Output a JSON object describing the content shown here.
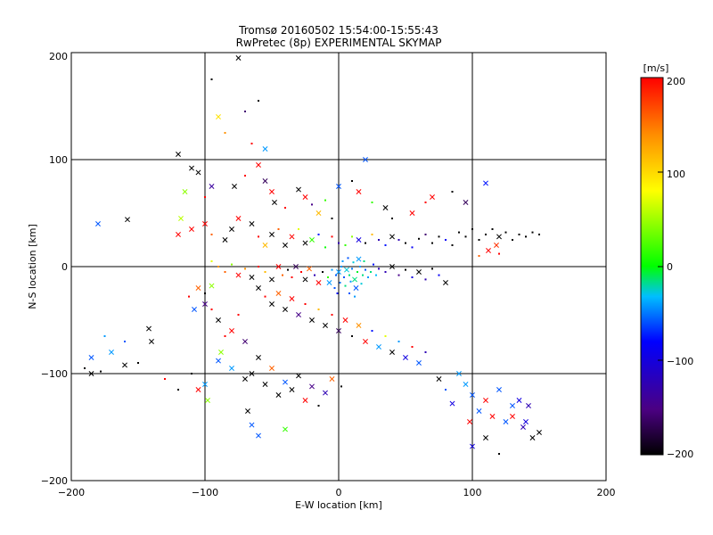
{
  "chart_data": {
    "type": "scatter",
    "title": "Tromsø 20160502 15:54:00-15:55:43",
    "subtitle": "RwPretec (8p) EXPERIMENTAL SKYMAP",
    "xlabel": "E-W location [km]",
    "ylabel": "N-S location [km]",
    "xlim": [
      -200,
      200
    ],
    "ylim": [
      -200,
      200
    ],
    "xticks": [
      "−200",
      "−100",
      "0",
      "100",
      "200"
    ],
    "yticks": [
      "−200",
      "−100",
      "0",
      "100",
      "200"
    ],
    "grid": true,
    "colorbar": {
      "label": "[m/s]",
      "range": [
        -200,
        200
      ],
      "ticks": [
        "200",
        "100",
        "0",
        "−100",
        "−200"
      ],
      "colors": [
        "#000000",
        "#4b0082",
        "#0000ff",
        "#00bfff",
        "#00ff00",
        "#ffff00",
        "#ff8c00",
        "#ff0000"
      ]
    },
    "points": [
      [
        -75,
        195,
        -200,
        "x"
      ],
      [
        -95,
        175,
        -200,
        "."
      ],
      [
        -60,
        155,
        -200,
        "."
      ],
      [
        -70,
        145,
        -150,
        "."
      ],
      [
        -90,
        140,
        100,
        "x"
      ],
      [
        -85,
        125,
        140,
        "."
      ],
      [
        -65,
        115,
        200,
        "."
      ],
      [
        -55,
        110,
        -40,
        "x"
      ],
      [
        -120,
        105,
        -200,
        "x"
      ],
      [
        -110,
        92,
        -200,
        "x"
      ],
      [
        -105,
        88,
        -200,
        "x"
      ],
      [
        -95,
        75,
        -130,
        "x"
      ],
      [
        -115,
        70,
        60,
        "x"
      ],
      [
        -100,
        65,
        200,
        "."
      ],
      [
        -78,
        75,
        -200,
        "x"
      ],
      [
        -70,
        85,
        200,
        "."
      ],
      [
        -60,
        95,
        200,
        "x"
      ],
      [
        -55,
        80,
        -160,
        "x"
      ],
      [
        -50,
        70,
        200,
        "x"
      ],
      [
        -48,
        60,
        -200,
        "x"
      ],
      [
        -40,
        55,
        200,
        "."
      ],
      [
        -30,
        72,
        -200,
        "x"
      ],
      [
        -25,
        65,
        200,
        "x"
      ],
      [
        -20,
        58,
        -140,
        "."
      ],
      [
        -15,
        50,
        120,
        "x"
      ],
      [
        -10,
        62,
        40,
        "."
      ],
      [
        -5,
        45,
        -200,
        "."
      ],
      [
        0,
        75,
        -60,
        "x"
      ],
      [
        10,
        80,
        -200,
        "."
      ],
      [
        20,
        100,
        -60,
        "x"
      ],
      [
        15,
        70,
        200,
        "x"
      ],
      [
        25,
        60,
        40,
        "."
      ],
      [
        35,
        55,
        -200,
        "x"
      ],
      [
        40,
        45,
        -200,
        "."
      ],
      [
        55,
        50,
        200,
        "x"
      ],
      [
        65,
        60,
        200,
        "."
      ],
      [
        70,
        65,
        200,
        "x"
      ],
      [
        85,
        70,
        -200,
        "."
      ],
      [
        110,
        78,
        -80,
        "x"
      ],
      [
        95,
        60,
        -160,
        "x"
      ],
      [
        -180,
        40,
        -60,
        "x"
      ],
      [
        -158,
        44,
        -200,
        "x"
      ],
      [
        -118,
        45,
        70,
        "x"
      ],
      [
        -120,
        30,
        200,
        "x"
      ],
      [
        -110,
        35,
        200,
        "x"
      ],
      [
        -100,
        40,
        200,
        "x"
      ],
      [
        -95,
        30,
        160,
        "."
      ],
      [
        -85,
        25,
        -200,
        "x"
      ],
      [
        -80,
        35,
        -200,
        "x"
      ],
      [
        -75,
        45,
        200,
        "x"
      ],
      [
        -65,
        40,
        -200,
        "x"
      ],
      [
        -60,
        28,
        200,
        "."
      ],
      [
        -55,
        20,
        120,
        "x"
      ],
      [
        -50,
        30,
        -200,
        "x"
      ],
      [
        -45,
        35,
        160,
        "."
      ],
      [
        -40,
        20,
        -200,
        "x"
      ],
      [
        -35,
        28,
        200,
        "x"
      ],
      [
        -30,
        35,
        80,
        "."
      ],
      [
        -25,
        22,
        -200,
        "x"
      ],
      [
        -20,
        25,
        40,
        "x"
      ],
      [
        -15,
        30,
        -80,
        "."
      ],
      [
        -10,
        18,
        30,
        "."
      ],
      [
        -5,
        28,
        200,
        "."
      ],
      [
        0,
        22,
        -120,
        "."
      ],
      [
        5,
        20,
        40,
        "."
      ],
      [
        10,
        28,
        60,
        "."
      ],
      [
        15,
        25,
        -100,
        "x"
      ],
      [
        20,
        22,
        -200,
        "."
      ],
      [
        25,
        30,
        120,
        "."
      ],
      [
        30,
        25,
        -120,
        "."
      ],
      [
        35,
        20,
        -80,
        "."
      ],
      [
        40,
        28,
        -200,
        "x"
      ],
      [
        45,
        25,
        -120,
        "."
      ],
      [
        50,
        22,
        -200,
        "."
      ],
      [
        55,
        18,
        -90,
        "."
      ],
      [
        60,
        26,
        -200,
        "."
      ],
      [
        65,
        30,
        -150,
        "."
      ],
      [
        70,
        22,
        -200,
        "."
      ],
      [
        75,
        28,
        -200,
        "."
      ],
      [
        80,
        25,
        -90,
        "."
      ],
      [
        85,
        20,
        -200,
        "."
      ],
      [
        90,
        32,
        -200,
        "."
      ],
      [
        95,
        28,
        -200,
        "."
      ],
      [
        100,
        35,
        -200,
        "."
      ],
      [
        105,
        25,
        -200,
        "."
      ],
      [
        110,
        30,
        -200,
        "."
      ],
      [
        115,
        35,
        -200,
        "."
      ],
      [
        120,
        28,
        -200,
        "x"
      ],
      [
        125,
        32,
        -200,
        "."
      ],
      [
        130,
        25,
        -200,
        "."
      ],
      [
        135,
        30,
        -200,
        "."
      ],
      [
        140,
        28,
        -200,
        "."
      ],
      [
        145,
        32,
        -200,
        "."
      ],
      [
        150,
        30,
        -200,
        "."
      ],
      [
        118,
        20,
        180,
        "x"
      ],
      [
        112,
        15,
        200,
        "x"
      ],
      [
        105,
        10,
        160,
        "."
      ],
      [
        120,
        12,
        200,
        "."
      ],
      [
        -95,
        5,
        80,
        "."
      ],
      [
        -90,
        0,
        140,
        "."
      ],
      [
        -85,
        -5,
        160,
        "."
      ],
      [
        -80,
        2,
        60,
        "."
      ],
      [
        -75,
        -8,
        200,
        "x"
      ],
      [
        -70,
        -2,
        140,
        "."
      ],
      [
        -65,
        -10,
        -200,
        "x"
      ],
      [
        -60,
        0,
        200,
        "."
      ],
      [
        -55,
        -5,
        120,
        "."
      ],
      [
        -50,
        -12,
        -200,
        "x"
      ],
      [
        -45,
        0,
        200,
        "x"
      ],
      [
        -42,
        -8,
        160,
        "."
      ],
      [
        -38,
        -3,
        -200,
        "."
      ],
      [
        -35,
        -10,
        200,
        "."
      ],
      [
        -32,
        0,
        -160,
        "x"
      ],
      [
        -28,
        -5,
        200,
        "."
      ],
      [
        -25,
        -12,
        -200,
        "x"
      ],
      [
        -22,
        -2,
        160,
        "x"
      ],
      [
        -18,
        -8,
        -120,
        "."
      ],
      [
        -15,
        -15,
        200,
        "x"
      ],
      [
        -12,
        -5,
        -200,
        "."
      ],
      [
        -8,
        -10,
        40,
        "."
      ],
      [
        -5,
        -3,
        -40,
        "."
      ],
      [
        -2,
        -8,
        -60,
        "."
      ],
      [
        0,
        -5,
        -40,
        "x"
      ],
      [
        2,
        0,
        -40,
        "."
      ],
      [
        4,
        -10,
        -60,
        "."
      ],
      [
        6,
        -3,
        -20,
        "x"
      ],
      [
        8,
        -8,
        0,
        "."
      ],
      [
        10,
        -2,
        -50,
        "."
      ],
      [
        12,
        -12,
        0,
        "x"
      ],
      [
        14,
        -5,
        20,
        "."
      ],
      [
        16,
        0,
        -40,
        "."
      ],
      [
        18,
        -8,
        0,
        "."
      ],
      [
        20,
        -3,
        -60,
        "."
      ],
      [
        22,
        -10,
        -40,
        "."
      ],
      [
        24,
        -5,
        0,
        "."
      ],
      [
        26,
        2,
        -80,
        "."
      ],
      [
        28,
        -8,
        -30,
        "."
      ],
      [
        30,
        -2,
        -120,
        "."
      ],
      [
        3,
        5,
        -40,
        "."
      ],
      [
        7,
        8,
        -60,
        "."
      ],
      [
        11,
        4,
        -20,
        "."
      ],
      [
        15,
        7,
        -40,
        "x"
      ],
      [
        19,
        5,
        0,
        "."
      ],
      [
        1,
        -15,
        -50,
        "."
      ],
      [
        5,
        -18,
        0,
        "."
      ],
      [
        9,
        -14,
        -40,
        "."
      ],
      [
        13,
        -20,
        -60,
        "x"
      ],
      [
        17,
        -16,
        -20,
        "."
      ],
      [
        -3,
        -20,
        -60,
        "."
      ],
      [
        -7,
        -15,
        -40,
        "x"
      ],
      [
        -1,
        -25,
        -80,
        "."
      ],
      [
        8,
        -25,
        -60,
        "."
      ],
      [
        12,
        -28,
        -40,
        "."
      ],
      [
        35,
        -5,
        -120,
        "."
      ],
      [
        40,
        0,
        -200,
        "x"
      ],
      [
        45,
        -8,
        -140,
        "."
      ],
      [
        50,
        -3,
        -200,
        "."
      ],
      [
        55,
        -10,
        -100,
        "."
      ],
      [
        60,
        -5,
        -200,
        "x"
      ],
      [
        65,
        -12,
        -120,
        "."
      ],
      [
        70,
        -2,
        -200,
        "."
      ],
      [
        75,
        -8,
        -90,
        "."
      ],
      [
        80,
        -15,
        -200,
        "x"
      ],
      [
        -60,
        -20,
        -200,
        "x"
      ],
      [
        -55,
        -28,
        200,
        "."
      ],
      [
        -50,
        -35,
        -200,
        "x"
      ],
      [
        -45,
        -25,
        160,
        "x"
      ],
      [
        -40,
        -40,
        -200,
        "x"
      ],
      [
        -35,
        -30,
        200,
        "x"
      ],
      [
        -30,
        -45,
        -140,
        "x"
      ],
      [
        -25,
        -35,
        200,
        "."
      ],
      [
        -20,
        -50,
        -200,
        "x"
      ],
      [
        -15,
        -40,
        120,
        "."
      ],
      [
        -10,
        -55,
        -200,
        "x"
      ],
      [
        -5,
        -45,
        200,
        "."
      ],
      [
        0,
        -60,
        -160,
        "x"
      ],
      [
        5,
        -50,
        200,
        "x"
      ],
      [
        10,
        -65,
        -200,
        "."
      ],
      [
        15,
        -55,
        140,
        "x"
      ],
      [
        20,
        -70,
        200,
        "x"
      ],
      [
        25,
        -60,
        -80,
        "."
      ],
      [
        30,
        -75,
        -40,
        "x"
      ],
      [
        35,
        -65,
        80,
        "."
      ],
      [
        40,
        -80,
        -200,
        "x"
      ],
      [
        45,
        -70,
        -40,
        "."
      ],
      [
        50,
        -85,
        -100,
        "x"
      ],
      [
        55,
        -75,
        200,
        "."
      ],
      [
        60,
        -90,
        -60,
        "x"
      ],
      [
        65,
        -80,
        -120,
        "."
      ],
      [
        -90,
        -50,
        -200,
        "x"
      ],
      [
        -80,
        -60,
        200,
        "x"
      ],
      [
        -70,
        -70,
        -150,
        "x"
      ],
      [
        -75,
        -45,
        200,
        "."
      ],
      [
        -85,
        -65,
        200,
        "."
      ],
      [
        -95,
        -40,
        200,
        "."
      ],
      [
        -100,
        -35,
        -140,
        "x"
      ],
      [
        -88,
        -80,
        60,
        "x"
      ],
      [
        -60,
        -85,
        -200,
        "x"
      ],
      [
        -65,
        -100,
        -200,
        "x"
      ],
      [
        -70,
        -105,
        -200,
        "x"
      ],
      [
        -55,
        -110,
        -200,
        "x"
      ],
      [
        -50,
        -95,
        160,
        "x"
      ],
      [
        -45,
        -120,
        -200,
        "x"
      ],
      [
        -40,
        -108,
        -60,
        "x"
      ],
      [
        -35,
        -115,
        -200,
        "x"
      ],
      [
        -30,
        -102,
        -200,
        "x"
      ],
      [
        -25,
        -125,
        200,
        "x"
      ],
      [
        -20,
        -112,
        -140,
        "x"
      ],
      [
        -15,
        -130,
        -200,
        "."
      ],
      [
        -10,
        -118,
        -120,
        "x"
      ],
      [
        -5,
        -105,
        160,
        "x"
      ],
      [
        2,
        -112,
        -200,
        "."
      ],
      [
        -90,
        -88,
        -60,
        "x"
      ],
      [
        -80,
        -95,
        -40,
        "x"
      ],
      [
        -100,
        -110,
        -40,
        "x"
      ],
      [
        -110,
        -100,
        -200,
        "."
      ],
      [
        -120,
        -115,
        -200,
        "."
      ],
      [
        -130,
        -105,
        200,
        "."
      ],
      [
        -105,
        -115,
        200,
        "x"
      ],
      [
        -98,
        -125,
        60,
        "x"
      ],
      [
        -68,
        -135,
        -200,
        "x"
      ],
      [
        -65,
        -148,
        -60,
        "x"
      ],
      [
        -60,
        -158,
        -60,
        "x"
      ],
      [
        -40,
        -152,
        40,
        "x"
      ],
      [
        -140,
        -70,
        -200,
        "x"
      ],
      [
        -142,
        -58,
        -200,
        "x"
      ],
      [
        -170,
        -80,
        -40,
        "x"
      ],
      [
        -185,
        -85,
        -60,
        "x"
      ],
      [
        -160,
        -70,
        -60,
        "."
      ],
      [
        -175,
        -65,
        -40,
        "."
      ],
      [
        -190,
        -95,
        -200,
        "."
      ],
      [
        -185,
        -100,
        -200,
        "x"
      ],
      [
        -178,
        -98,
        -200,
        "."
      ],
      [
        -150,
        -90,
        -200,
        "."
      ],
      [
        -160,
        -92,
        -200,
        "x"
      ],
      [
        90,
        -100,
        -40,
        "x"
      ],
      [
        95,
        -110,
        -40,
        "x"
      ],
      [
        100,
        -120,
        -60,
        "x"
      ],
      [
        105,
        -135,
        -60,
        "x"
      ],
      [
        110,
        -125,
        200,
        "x"
      ],
      [
        115,
        -140,
        200,
        "x"
      ],
      [
        120,
        -115,
        -60,
        "x"
      ],
      [
        125,
        -145,
        -60,
        "x"
      ],
      [
        130,
        -130,
        -60,
        "x"
      ],
      [
        135,
        -125,
        -100,
        "x"
      ],
      [
        140,
        -145,
        -100,
        "x"
      ],
      [
        142,
        -130,
        -120,
        "x"
      ],
      [
        138,
        -150,
        -120,
        "x"
      ],
      [
        145,
        -160,
        -200,
        "x"
      ],
      [
        150,
        -155,
        -200,
        "x"
      ],
      [
        130,
        -140,
        200,
        "x"
      ],
      [
        120,
        -175,
        -200,
        "."
      ],
      [
        110,
        -160,
        -200,
        "x"
      ],
      [
        98,
        -145,
        200,
        "x"
      ],
      [
        100,
        -168,
        -100,
        "x"
      ],
      [
        85,
        -128,
        -100,
        "x"
      ],
      [
        80,
        -115,
        -60,
        "."
      ],
      [
        75,
        -105,
        -200,
        "x"
      ],
      [
        -105,
        -20,
        160,
        "x"
      ],
      [
        -100,
        -25,
        -200,
        "."
      ],
      [
        -108,
        -40,
        -60,
        "x"
      ],
      [
        -95,
        -18,
        60,
        "x"
      ],
      [
        -112,
        -28,
        200,
        "."
      ]
    ]
  }
}
